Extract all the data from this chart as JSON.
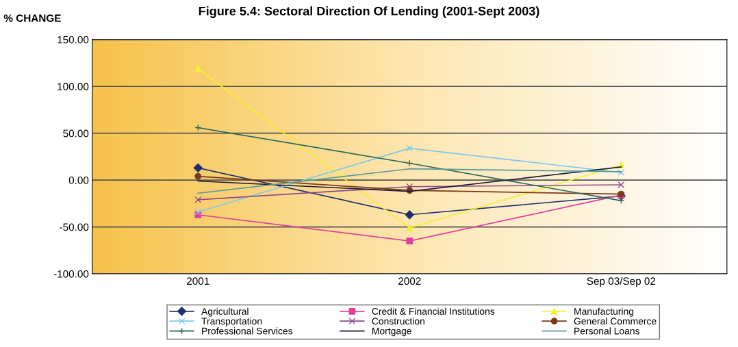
{
  "chart_data": {
    "type": "line",
    "title": "Figure 5.4: Sectoral Direction Of Lending (2001-Sept 2003)",
    "ylabel": "% CHANGE",
    "categories": [
      "2001",
      "2002",
      "Sep 03/Sep 02"
    ],
    "ylim": [
      -100,
      150
    ],
    "yticks": [
      {
        "value": -100,
        "label": "-100.00"
      },
      {
        "value": -50,
        "label": "-50.00"
      },
      {
        "value": 0,
        "label": "0.00"
      },
      {
        "value": 50,
        "label": "50.00"
      },
      {
        "value": 100,
        "label": "100.00"
      },
      {
        "value": 150,
        "label": "150.00"
      }
    ],
    "grid": "y",
    "legend": "bottom",
    "series": [
      {
        "name": "Agricultural",
        "color": "#1f2f6e",
        "marker": "diamond",
        "values": [
          13,
          -37,
          -17
        ]
      },
      {
        "name": "Credit & Financial Institutions",
        "color": "#e0409a",
        "marker": "square",
        "values": [
          -37,
          -65,
          -16
        ]
      },
      {
        "name": "Manufacturing",
        "color": "#f0f030",
        "marker": "triangle",
        "values": [
          119,
          -51,
          16
        ]
      },
      {
        "name": "Transportation",
        "color": "#7fc8e8",
        "marker": "cross",
        "values": [
          -34,
          34,
          8
        ]
      },
      {
        "name": "Construction",
        "color": "#8a4a8a",
        "marker": "cross",
        "values": [
          -21,
          -7,
          -5
        ]
      },
      {
        "name": "General Commerce",
        "color": "#7a3a1a",
        "marker": "circle",
        "values": [
          4,
          -11,
          -15
        ]
      },
      {
        "name": "Professional Services",
        "color": "#2a6a5a",
        "marker": "plus",
        "values": [
          56,
          18,
          -22
        ]
      },
      {
        "name": "Mortgage",
        "color": "#1a1a3a",
        "marker": "none",
        "values": [
          -1,
          -12,
          14
        ]
      },
      {
        "name": "Personal Loans",
        "color": "#5a9a9a",
        "marker": "none",
        "values": [
          -14,
          12,
          9
        ]
      }
    ]
  }
}
